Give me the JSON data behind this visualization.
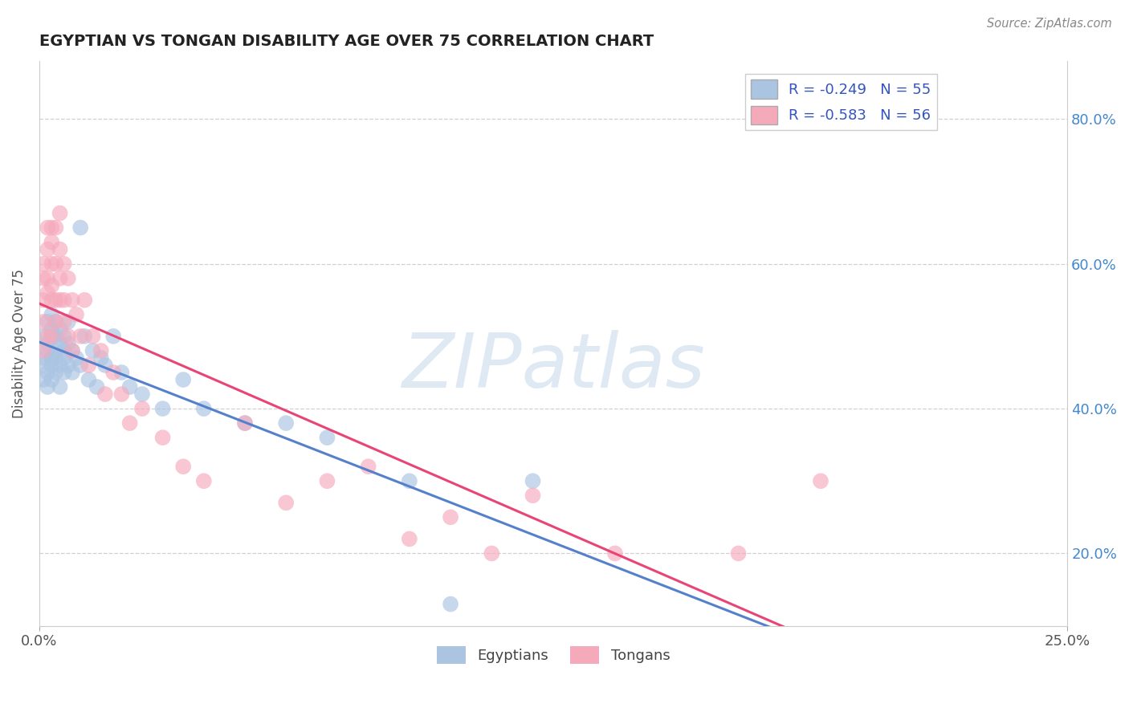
{
  "title": "EGYPTIAN VS TONGAN DISABILITY AGE OVER 75 CORRELATION CHART",
  "source": "Source: ZipAtlas.com",
  "ylabel": "Disability Age Over 75",
  "y_ticks": [
    0.2,
    0.4,
    0.6,
    0.8
  ],
  "y_tick_labels": [
    "20.0%",
    "40.0%",
    "60.0%",
    "80.0%"
  ],
  "xlim": [
    0.0,
    0.25
  ],
  "ylim": [
    0.1,
    0.88
  ],
  "legend_r1": "R = -0.249",
  "legend_n1": "N = 55",
  "legend_r2": "R = -0.583",
  "legend_n2": "N = 56",
  "color_egyptian": "#aac4e2",
  "color_tongan": "#f5aabc",
  "color_line_egyptian": "#5580cc",
  "color_line_tongan": "#e84476",
  "watermark": "ZIPatlas",
  "egyptians_x": [
    0.001,
    0.001,
    0.001,
    0.001,
    0.002,
    0.002,
    0.002,
    0.002,
    0.002,
    0.003,
    0.003,
    0.003,
    0.003,
    0.003,
    0.003,
    0.004,
    0.004,
    0.004,
    0.004,
    0.004,
    0.005,
    0.005,
    0.005,
    0.005,
    0.006,
    0.006,
    0.006,
    0.006,
    0.007,
    0.007,
    0.007,
    0.008,
    0.008,
    0.009,
    0.01,
    0.01,
    0.011,
    0.012,
    0.013,
    0.014,
    0.015,
    0.016,
    0.018,
    0.02,
    0.022,
    0.025,
    0.03,
    0.035,
    0.04,
    0.05,
    0.06,
    0.07,
    0.09,
    0.1,
    0.12
  ],
  "egyptians_y": [
    0.47,
    0.5,
    0.46,
    0.44,
    0.49,
    0.52,
    0.48,
    0.45,
    0.43,
    0.51,
    0.47,
    0.5,
    0.53,
    0.46,
    0.44,
    0.48,
    0.5,
    0.45,
    0.47,
    0.52,
    0.46,
    0.49,
    0.43,
    0.51,
    0.48,
    0.45,
    0.5,
    0.47,
    0.46,
    0.49,
    0.52,
    0.45,
    0.48,
    0.47,
    0.65,
    0.46,
    0.5,
    0.44,
    0.48,
    0.43,
    0.47,
    0.46,
    0.5,
    0.45,
    0.43,
    0.42,
    0.4,
    0.44,
    0.4,
    0.38,
    0.38,
    0.36,
    0.3,
    0.13,
    0.3
  ],
  "tongans_x": [
    0.001,
    0.001,
    0.001,
    0.001,
    0.001,
    0.002,
    0.002,
    0.002,
    0.002,
    0.002,
    0.003,
    0.003,
    0.003,
    0.003,
    0.003,
    0.003,
    0.004,
    0.004,
    0.004,
    0.004,
    0.005,
    0.005,
    0.005,
    0.005,
    0.006,
    0.006,
    0.006,
    0.007,
    0.007,
    0.008,
    0.008,
    0.009,
    0.01,
    0.011,
    0.012,
    0.013,
    0.015,
    0.016,
    0.018,
    0.02,
    0.022,
    0.025,
    0.03,
    0.035,
    0.04,
    0.05,
    0.06,
    0.07,
    0.08,
    0.09,
    0.1,
    0.11,
    0.12,
    0.14,
    0.17,
    0.19
  ],
  "tongans_y": [
    0.52,
    0.55,
    0.6,
    0.48,
    0.58,
    0.56,
    0.62,
    0.65,
    0.58,
    0.5,
    0.6,
    0.55,
    0.65,
    0.57,
    0.63,
    0.5,
    0.6,
    0.55,
    0.65,
    0.52,
    0.58,
    0.62,
    0.55,
    0.67,
    0.6,
    0.55,
    0.52,
    0.58,
    0.5,
    0.55,
    0.48,
    0.53,
    0.5,
    0.55,
    0.46,
    0.5,
    0.48,
    0.42,
    0.45,
    0.42,
    0.38,
    0.4,
    0.36,
    0.32,
    0.3,
    0.38,
    0.27,
    0.3,
    0.32,
    0.22,
    0.25,
    0.2,
    0.28,
    0.2,
    0.2,
    0.3
  ]
}
